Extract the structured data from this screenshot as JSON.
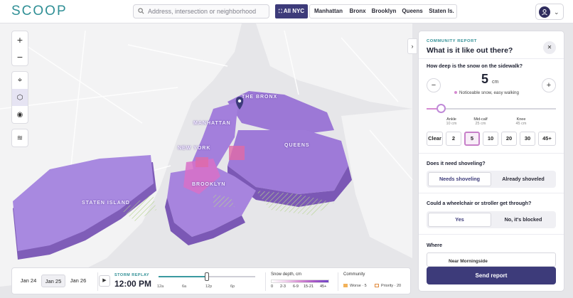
{
  "app": {
    "logo": "SCOOP"
  },
  "search": {
    "placeholder": "Address, intersection or neighborhood"
  },
  "boroughs": [
    "All NYC",
    "Manhattan",
    "Bronx",
    "Brooklyn",
    "Queens",
    "Staten Is."
  ],
  "map": {
    "labels": [
      "THE BRONX",
      "MANHATTAN",
      "NEW YORK",
      "QUEENS",
      "BROOKLYN",
      "STATEN ISLAND"
    ]
  },
  "timeline": {
    "days": [
      "Jan 24",
      "Jan 25",
      "Jan 26"
    ],
    "selected_day": "Jan 25",
    "replay_label": "STORM REPLAY",
    "time": "12:00 PM",
    "progress": 0.5,
    "ticks": [
      "12a",
      "6a",
      "12p",
      "6p"
    ]
  },
  "legend": {
    "title": "Snow depth, cm",
    "stops": [
      "0",
      "2-3",
      "6-9",
      "15-21",
      "45+"
    ]
  },
  "community": {
    "title": "Community",
    "worse": "Worse · 5",
    "priority": "Priority · 20"
  },
  "panel": {
    "kicker": "COMMUNITY REPORT",
    "title": "What is it like out there?",
    "q_depth": "How deep is the snow on the sidewalk?",
    "depth_value": "5",
    "depth_unit": "cm",
    "depth_desc": "Noticeable snow, easy walking",
    "depth_fraction": 0.11,
    "marks": [
      {
        "label": "Ankle",
        "sub": "10 cm"
      },
      {
        "label": "Mid-calf",
        "sub": "25 cm"
      },
      {
        "label": "Knee",
        "sub": "45 cm"
      }
    ],
    "chips": [
      "Clear",
      "2",
      "5",
      "10",
      "20",
      "30",
      "45+"
    ],
    "selected_chip": "5",
    "q_shovel": "Does it need shoveling?",
    "shovel_options": [
      "Needs shoveling",
      "Already shoveled"
    ],
    "q_wheelchair": "Could a wheelchair or stroller get through?",
    "wheelchair_options": [
      "Yes",
      "No, it's blocked"
    ],
    "where_label": "Where",
    "where_value": "Near Morningside",
    "send_label": "Send report"
  },
  "colors": {
    "accent": "#3d3b7a",
    "teal": "#2f8f95",
    "snow_purple": "#a25fd0",
    "snow_pink": "#d58bd1"
  }
}
